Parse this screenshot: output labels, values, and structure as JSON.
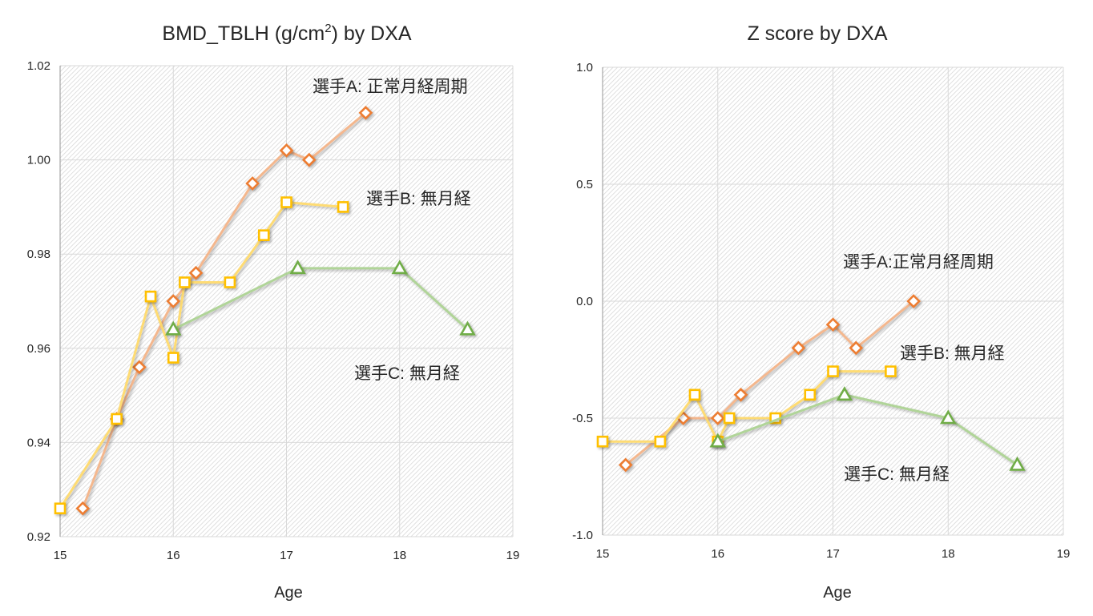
{
  "chart_data": [
    {
      "type": "line",
      "title": {
        "prefix": "BMD_TBLH (g/cm",
        "sup": "2",
        "suffix": ") by DXA"
      },
      "xlabel": "Age",
      "ylabel": "",
      "xlim": [
        15,
        19
      ],
      "ylim": [
        0.92,
        1.02
      ],
      "xticks": [
        "15",
        "16",
        "17",
        "18",
        "19"
      ],
      "yticks": [
        "0.92",
        "0.94",
        "0.96",
        "0.98",
        "1.00",
        "1.02"
      ],
      "grid": true,
      "series": [
        {
          "name": "選手A: 正常月経周期",
          "marker": "diamond",
          "line_color": "#f4b183",
          "marker_color": "#ed7d31",
          "x": [
            15.2,
            15.5,
            15.7,
            16.0,
            16.2,
            16.7,
            17.0,
            17.2,
            17.7
          ],
          "y": [
            0.926,
            0.945,
            0.956,
            0.97,
            0.976,
            0.995,
            1.002,
            1.0,
            1.01
          ]
        },
        {
          "name": "選手B: 無月経",
          "marker": "square",
          "line_color": "#ffd966",
          "marker_color": "#ffc000",
          "x": [
            15.0,
            15.5,
            15.8,
            16.0,
            16.1,
            16.5,
            16.8,
            17.0,
            17.5
          ],
          "y": [
            0.926,
            0.945,
            0.971,
            0.958,
            0.974,
            0.974,
            0.984,
            0.991,
            0.99
          ]
        },
        {
          "name": "選手C: 無月経",
          "marker": "triangle",
          "line_color": "#a9d18e",
          "marker_color": "#70ad47",
          "x": [
            16.0,
            17.1,
            18.0,
            18.6
          ],
          "y": [
            0.964,
            0.977,
            0.977,
            0.964
          ]
        }
      ]
    },
    {
      "type": "line",
      "title": {
        "prefix": "Z score by DXA",
        "sup": "",
        "suffix": ""
      },
      "xlabel": "Age",
      "ylabel": "",
      "xlim": [
        15,
        19
      ],
      "ylim": [
        -1.0,
        1.0
      ],
      "xticks": [
        "15",
        "16",
        "17",
        "18",
        "19"
      ],
      "yticks": [
        "-1.0",
        "-0.5",
        "0.0",
        "0.5",
        "1.0"
      ],
      "grid": true,
      "series": [
        {
          "name": "選手A:正常月経周期",
          "marker": "diamond",
          "line_color": "#f4b183",
          "marker_color": "#ed7d31",
          "x": [
            15.2,
            15.7,
            16.0,
            16.2,
            16.7,
            17.0,
            17.2,
            17.7
          ],
          "y": [
            -0.7,
            -0.5,
            -0.5,
            -0.4,
            -0.2,
            -0.1,
            -0.2,
            0.0
          ]
        },
        {
          "name": "選手B: 無月経",
          "marker": "square",
          "line_color": "#ffd966",
          "marker_color": "#ffc000",
          "x": [
            15.0,
            15.5,
            15.8,
            16.0,
            16.1,
            16.5,
            16.8,
            17.0,
            17.5
          ],
          "y": [
            -0.6,
            -0.6,
            -0.4,
            -0.6,
            -0.5,
            -0.5,
            -0.4,
            -0.3,
            -0.3
          ]
        },
        {
          "name": "選手C: 無月経",
          "marker": "triangle",
          "line_color": "#a9d18e",
          "marker_color": "#70ad47",
          "x": [
            16.0,
            17.1,
            18.0,
            18.6
          ],
          "y": [
            -0.6,
            -0.4,
            -0.5,
            -0.7
          ]
        }
      ]
    }
  ]
}
